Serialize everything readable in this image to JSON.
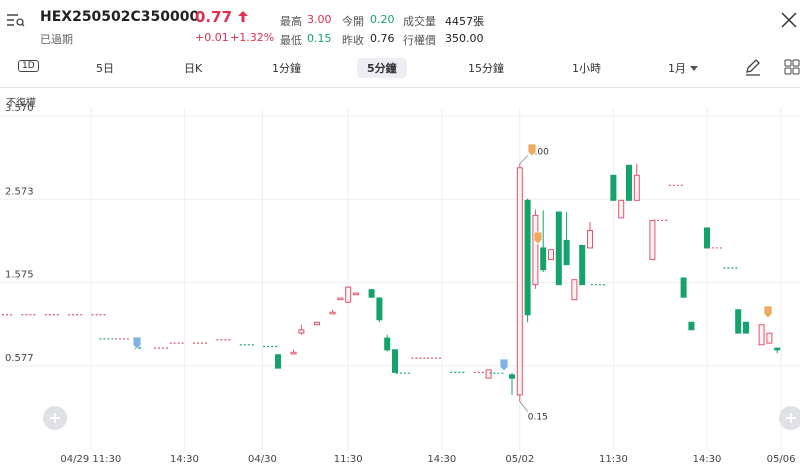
{
  "header": {
    "symbol": "HEX250502C350000",
    "status": "已過期",
    "price": 0.77,
    "change": "+0.01",
    "change_pct": "+1.32%",
    "stats": [
      {
        "label": "最高",
        "value": "3.00"
      },
      {
        "label": "今開",
        "value": "0.20"
      },
      {
        "label": "成交量",
        "value": "4457張"
      },
      {
        "label": "最低",
        "value": "0.15"
      },
      {
        "label": "昨收",
        "value": "0.76"
      },
      {
        "label": "行權價",
        "value": "350.00"
      }
    ]
  },
  "tabs": [
    "1D",
    "5日",
    "日K",
    "1分鐘",
    "5分鐘",
    "15分鐘",
    "1小時",
    "1月"
  ],
  "selected_tab": 4,
  "adjust_label": "不復權",
  "chart_data": {
    "type": "candlestick",
    "x": [
      0,
      3,
      6,
      9,
      12,
      13,
      15,
      17,
      20,
      22,
      25,
      28,
      31,
      34,
      35,
      37,
      38,
      40,
      42,
      43,
      44,
      45,
      47,
      48,
      49,
      50,
      51,
      53,
      55,
      58,
      61,
      62,
      63,
      65,
      66,
      67,
      68,
      69,
      70,
      71,
      72,
      73,
      74,
      75,
      76,
      78,
      79,
      80,
      81,
      83,
      84,
      86,
      87,
      88,
      90,
      91,
      93,
      94,
      95,
      97,
      98,
      99
    ],
    "open": [
      1.19,
      1.19,
      1.19,
      1.19,
      1.19,
      0.9,
      0.9,
      0.8,
      0.79,
      0.85,
      0.85,
      0.89,
      0.83,
      0.81,
      0.71,
      0.72,
      0.97,
      1.07,
      1.2,
      1.37,
      1.34,
      1.43,
      1.49,
      1.39,
      0.91,
      0.77,
      0.49,
      0.67,
      0.67,
      0.5,
      0.5,
      0.43,
      0.49,
      0.47,
      0.23,
      2.56,
      1.55,
      1.99,
      1.85,
      2.42,
      2.08,
      1.37,
      2.02,
      1.99,
      1.55,
      2.86,
      2.35,
      2.98,
      2.56,
      1.85,
      2.32,
      2.74,
      1.63,
      1.1,
      2.23,
      1.99,
      1.75,
      1.25,
      1.1,
      0.83,
      0.85,
      0.79
    ],
    "high": [
      1.19,
      1.19,
      1.19,
      1.19,
      1.19,
      0.9,
      0.9,
      0.8,
      0.79,
      0.85,
      0.85,
      0.89,
      0.83,
      0.81,
      0.72,
      0.77,
      1.07,
      1.1,
      1.25,
      1.39,
      1.53,
      1.45,
      1.5,
      1.4,
      0.95,
      0.77,
      0.49,
      0.67,
      0.67,
      0.5,
      0.5,
      0.53,
      0.49,
      0.49,
      3.0,
      2.58,
      2.45,
      2.44,
      1.97,
      2.42,
      2.42,
      1.61,
      2.02,
      2.3,
      1.55,
      2.86,
      2.56,
      2.98,
      3.0,
      2.32,
      2.32,
      2.74,
      1.63,
      1.1,
      2.23,
      1.99,
      1.75,
      1.25,
      1.1,
      1.07,
      0.97,
      0.79
    ],
    "low": [
      1.19,
      1.19,
      1.19,
      1.19,
      1.19,
      0.9,
      0.9,
      0.79,
      0.79,
      0.85,
      0.85,
      0.89,
      0.83,
      0.81,
      0.55,
      0.72,
      0.95,
      1.07,
      1.2,
      1.37,
      1.33,
      1.43,
      1.39,
      1.1,
      0.75,
      0.5,
      0.49,
      0.67,
      0.67,
      0.5,
      0.5,
      0.43,
      0.49,
      0.23,
      0.15,
      1.1,
      1.5,
      1.7,
      1.85,
      1.55,
      1.79,
      1.37,
      1.55,
      1.99,
      1.55,
      2.56,
      2.35,
      2.56,
      2.56,
      1.85,
      2.32,
      2.74,
      1.4,
      1.01,
      1.99,
      1.99,
      1.75,
      0.97,
      0.97,
      0.83,
      0.85,
      0.73
    ],
    "close": [
      1.19,
      1.19,
      1.19,
      1.19,
      1.19,
      0.9,
      0.9,
      0.79,
      0.79,
      0.85,
      0.85,
      0.89,
      0.83,
      0.81,
      0.55,
      0.74,
      1.01,
      1.1,
      1.22,
      1.39,
      1.52,
      1.45,
      1.4,
      1.13,
      0.77,
      0.5,
      0.49,
      0.67,
      0.67,
      0.5,
      0.5,
      0.53,
      0.49,
      0.43,
      2.95,
      1.19,
      2.38,
      1.73,
      1.97,
      1.55,
      1.79,
      1.61,
      1.55,
      2.2,
      1.55,
      2.56,
      2.56,
      2.56,
      2.86,
      2.32,
      2.32,
      2.74,
      1.4,
      1.01,
      1.99,
      1.99,
      1.75,
      0.97,
      0.97,
      1.07,
      0.97,
      0.77
    ],
    "up_color": "#e0566f",
    "down_color": "#14a36b",
    "high_label": "3.00",
    "low_label": "0.15",
    "xlim": [
      0,
      100
    ],
    "xticks": [
      {
        "value": 11,
        "label": "04/29 11:30"
      },
      {
        "value": 23,
        "label": "14:30"
      },
      {
        "value": 33,
        "label": "04/30"
      },
      {
        "value": 44,
        "label": "11:30"
      },
      {
        "value": 56,
        "label": "14:30"
      },
      {
        "value": 66,
        "label": "05/02"
      },
      {
        "value": 78,
        "label": "11:30"
      },
      {
        "value": 90,
        "label": "14:30"
      },
      {
        "value": 99.5,
        "label": "05/06"
      }
    ],
    "ylim": [
      -0.43,
      3.666
    ],
    "yticks": [
      {
        "value": 3.57,
        "label": "3.570"
      },
      2.573,
      1.575,
      0.577
    ],
    "grid": true
  }
}
